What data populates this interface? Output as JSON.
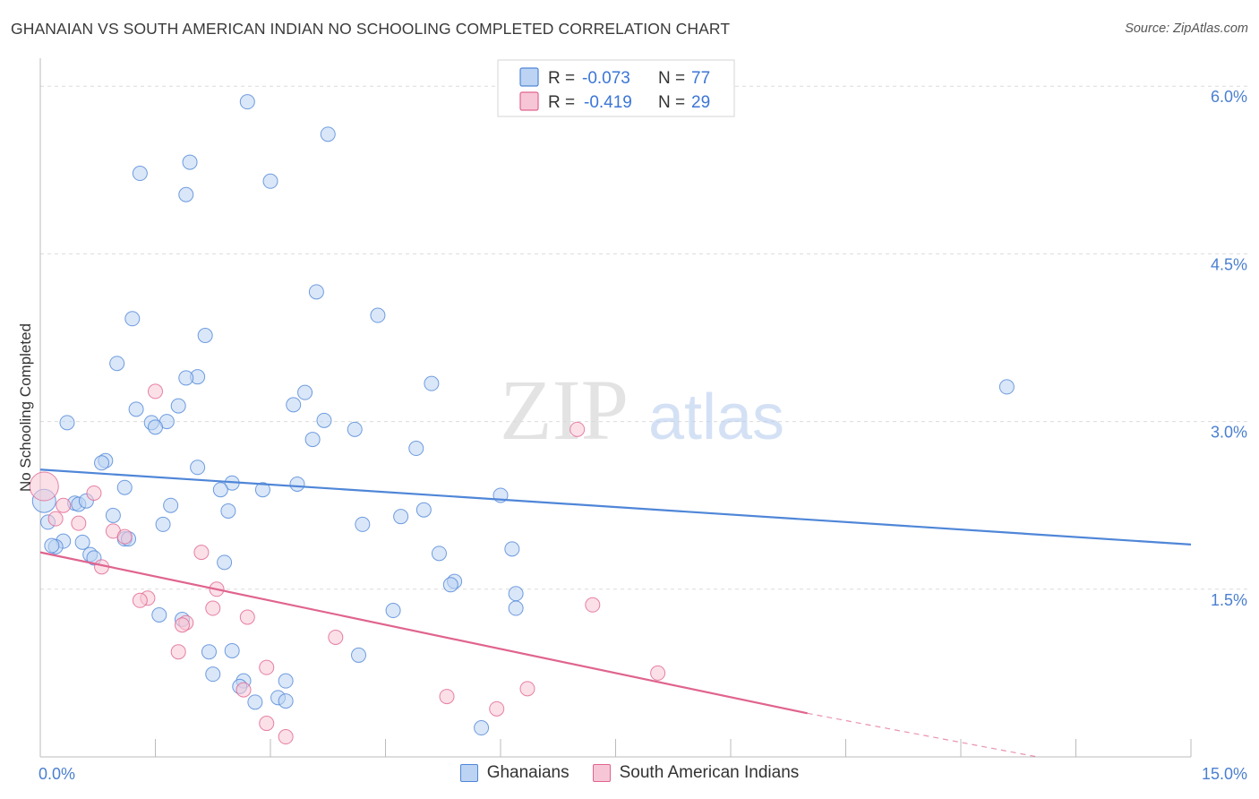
{
  "title": "GHANAIAN VS SOUTH AMERICAN INDIAN NO SCHOOLING COMPLETED CORRELATION CHART",
  "source": "Source: ZipAtlas.com",
  "watermark": {
    "zip": "ZIP",
    "atlas": "atlas"
  },
  "colors": {
    "blue": "#4f86d8",
    "blue_fill": "#bcd3f3",
    "pink": "#e0648e",
    "pink_fill": "#f7c6d6",
    "axis_text": "#4a7fd0"
  },
  "legend": {
    "rows": [
      {
        "r_label": "R =",
        "r_value": "-0.073",
        "n_label": "N =",
        "n_value": "77"
      },
      {
        "r_label": "R =",
        "r_value": "-0.419",
        "n_label": "N =",
        "n_value": "29"
      }
    ]
  },
  "bottom_legend": [
    "Ghanaians",
    "South American Indians"
  ],
  "chart_data": {
    "type": "scatter",
    "title": "GHANAIAN VS SOUTH AMERICAN INDIAN NO SCHOOLING COMPLETED CORRELATION CHART",
    "xlabel": "",
    "ylabel": "No Schooling Completed",
    "xlim": [
      0,
      15
    ],
    "ylim": [
      0,
      6.25
    ],
    "x_tick_labels": [
      "0.0%",
      "15.0%"
    ],
    "y_ticks": [
      1.5,
      3.0,
      4.5,
      6.0
    ],
    "y_tick_labels": [
      "1.5%",
      "3.0%",
      "4.5%",
      "6.0%"
    ],
    "grid": true,
    "legend_position": "top-center",
    "series": [
      {
        "name": "Ghanaians",
        "color": "#4f86d8",
        "points": [
          [
            2.7,
            5.86
          ],
          [
            3.75,
            5.57
          ],
          [
            1.95,
            5.32
          ],
          [
            1.3,
            5.22
          ],
          [
            3.0,
            5.15
          ],
          [
            1.9,
            5.03
          ],
          [
            3.6,
            4.16
          ],
          [
            4.4,
            3.95
          ],
          [
            1.2,
            3.92
          ],
          [
            2.15,
            3.77
          ],
          [
            1.0,
            3.52
          ],
          [
            2.05,
            3.4
          ],
          [
            1.9,
            3.39
          ],
          [
            5.1,
            3.34
          ],
          [
            12.6,
            3.31
          ],
          [
            3.45,
            3.26
          ],
          [
            1.25,
            3.11
          ],
          [
            1.8,
            3.14
          ],
          [
            3.3,
            3.15
          ],
          [
            0.35,
            2.99
          ],
          [
            1.65,
            3.0
          ],
          [
            1.45,
            2.99
          ],
          [
            1.5,
            2.95
          ],
          [
            3.7,
            3.01
          ],
          [
            4.1,
            2.93
          ],
          [
            3.55,
            2.84
          ],
          [
            4.9,
            2.76
          ],
          [
            0.85,
            2.65
          ],
          [
            0.8,
            2.63
          ],
          [
            2.05,
            2.59
          ],
          [
            2.5,
            2.45
          ],
          [
            3.35,
            2.44
          ],
          [
            1.1,
            2.41
          ],
          [
            2.35,
            2.39
          ],
          [
            2.9,
            2.39
          ],
          [
            6.0,
            2.34
          ],
          [
            0.05,
            2.29
          ],
          [
            0.45,
            2.27
          ],
          [
            0.5,
            2.26
          ],
          [
            0.6,
            2.29
          ],
          [
            1.7,
            2.25
          ],
          [
            2.45,
            2.2
          ],
          [
            5.0,
            2.21
          ],
          [
            4.7,
            2.15
          ],
          [
            0.95,
            2.16
          ],
          [
            1.6,
            2.08
          ],
          [
            4.2,
            2.08
          ],
          [
            0.1,
            2.1
          ],
          [
            1.1,
            1.95
          ],
          [
            1.15,
            1.95
          ],
          [
            0.3,
            1.93
          ],
          [
            0.55,
            1.92
          ],
          [
            0.2,
            1.88
          ],
          [
            0.15,
            1.89
          ],
          [
            6.15,
            1.86
          ],
          [
            5.2,
            1.82
          ],
          [
            0.65,
            1.81
          ],
          [
            0.7,
            1.78
          ],
          [
            2.4,
            1.74
          ],
          [
            5.4,
            1.57
          ],
          [
            5.35,
            1.54
          ],
          [
            6.2,
            1.46
          ],
          [
            6.2,
            1.33
          ],
          [
            4.6,
            1.31
          ],
          [
            1.55,
            1.27
          ],
          [
            1.85,
            1.23
          ],
          [
            2.2,
            0.94
          ],
          [
            2.5,
            0.95
          ],
          [
            4.15,
            0.91
          ],
          [
            2.25,
            0.74
          ],
          [
            2.65,
            0.68
          ],
          [
            3.2,
            0.68
          ],
          [
            2.6,
            0.63
          ],
          [
            2.8,
            0.49
          ],
          [
            3.1,
            0.53
          ],
          [
            3.2,
            0.5
          ],
          [
            5.75,
            0.26
          ]
        ]
      },
      {
        "name": "South American Indians",
        "color": "#e0648e",
        "points": [
          [
            0.05,
            2.42
          ],
          [
            0.7,
            2.36
          ],
          [
            0.3,
            2.25
          ],
          [
            0.2,
            2.13
          ],
          [
            0.5,
            2.09
          ],
          [
            0.95,
            2.02
          ],
          [
            1.1,
            1.97
          ],
          [
            2.1,
            1.83
          ],
          [
            0.8,
            1.7
          ],
          [
            7.0,
            2.93
          ],
          [
            1.5,
            3.27
          ],
          [
            2.3,
            1.5
          ],
          [
            1.4,
            1.42
          ],
          [
            1.3,
            1.4
          ],
          [
            2.25,
            1.33
          ],
          [
            7.2,
            1.36
          ],
          [
            2.7,
            1.25
          ],
          [
            1.9,
            1.2
          ],
          [
            1.85,
            1.18
          ],
          [
            3.85,
            1.07
          ],
          [
            1.8,
            0.94
          ],
          [
            2.95,
            0.8
          ],
          [
            8.05,
            0.75
          ],
          [
            2.65,
            0.6
          ],
          [
            6.35,
            0.61
          ],
          [
            5.3,
            0.54
          ],
          [
            5.95,
            0.43
          ],
          [
            2.95,
            0.3
          ],
          [
            3.2,
            0.18
          ]
        ]
      }
    ],
    "trend_lines": [
      {
        "series": "Ghanaians",
        "x": [
          0,
          15
        ],
        "y": [
          2.57,
          1.9
        ]
      },
      {
        "series": "South American Indians",
        "x": [
          0,
          10
        ],
        "y": [
          1.83,
          0.39
        ],
        "dashed_to": [
          13,
          0.0
        ]
      }
    ]
  }
}
